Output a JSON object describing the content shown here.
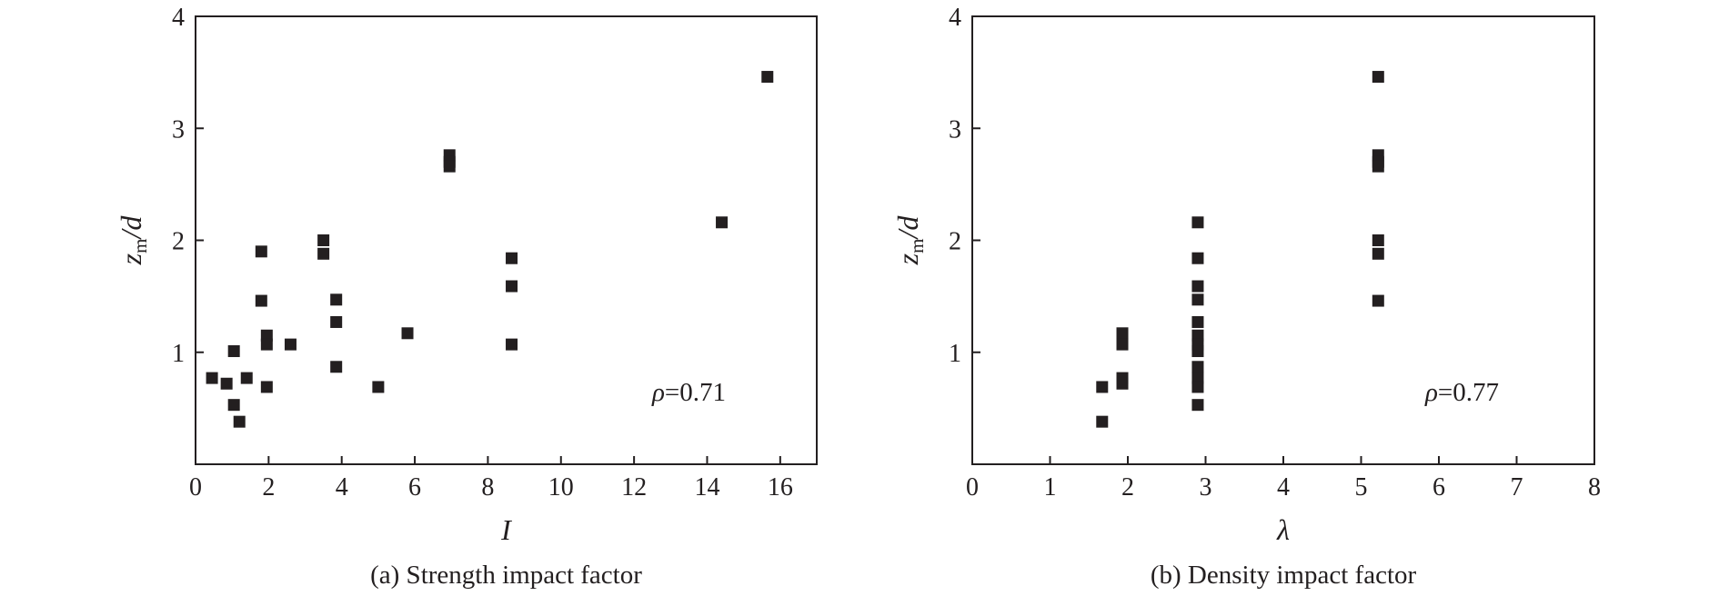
{
  "chart_data": [
    {
      "type": "scatter",
      "caption": "(a) Strength impact factor",
      "xlabel": "I",
      "ylabel_main": "z",
      "ylabel_sub": "m",
      "ylabel_tail": "/d",
      "annotation_symbol": "ρ",
      "annotation_value": "=0.71",
      "xlim": [
        0,
        17
      ],
      "ylim": [
        0,
        4
      ],
      "xticks": [
        0,
        2,
        4,
        6,
        8,
        10,
        12,
        14,
        16
      ],
      "yticks": [
        1,
        2,
        3,
        4
      ],
      "marker": "square",
      "color": "#231f20",
      "points": [
        {
          "x": 0.45,
          "y": 0.77
        },
        {
          "x": 0.85,
          "y": 0.72
        },
        {
          "x": 1.05,
          "y": 1.01
        },
        {
          "x": 1.05,
          "y": 0.53
        },
        {
          "x": 1.2,
          "y": 0.38
        },
        {
          "x": 1.4,
          "y": 0.77
        },
        {
          "x": 1.8,
          "y": 1.9
        },
        {
          "x": 1.8,
          "y": 1.46
        },
        {
          "x": 1.95,
          "y": 1.15
        },
        {
          "x": 1.95,
          "y": 1.07
        },
        {
          "x": 1.95,
          "y": 0.69
        },
        {
          "x": 2.6,
          "y": 1.07
        },
        {
          "x": 3.5,
          "y": 2.0
        },
        {
          "x": 3.5,
          "y": 1.88
        },
        {
          "x": 3.85,
          "y": 1.47
        },
        {
          "x": 3.85,
          "y": 1.27
        },
        {
          "x": 3.85,
          "y": 0.87
        },
        {
          "x": 5.0,
          "y": 0.69
        },
        {
          "x": 5.8,
          "y": 1.17
        },
        {
          "x": 6.95,
          "y": 2.76
        },
        {
          "x": 6.95,
          "y": 2.7
        },
        {
          "x": 6.95,
          "y": 2.66
        },
        {
          "x": 8.65,
          "y": 1.84
        },
        {
          "x": 8.65,
          "y": 1.59
        },
        {
          "x": 8.65,
          "y": 1.07
        },
        {
          "x": 14.4,
          "y": 2.16
        },
        {
          "x": 15.65,
          "y": 3.46
        }
      ]
    },
    {
      "type": "scatter",
      "caption": "(b) Density impact factor",
      "xlabel": "λ",
      "ylabel_main": "z",
      "ylabel_sub": "m",
      "ylabel_tail": "/d",
      "annotation_symbol": "ρ",
      "annotation_value": "=0.77",
      "xlim": [
        0,
        8
      ],
      "ylim": [
        0,
        4
      ],
      "xticks": [
        0,
        1,
        2,
        3,
        4,
        5,
        6,
        7,
        8
      ],
      "yticks": [
        1,
        2,
        3,
        4
      ],
      "marker": "square",
      "color": "#231f20",
      "points": [
        {
          "x": 1.67,
          "y": 0.69
        },
        {
          "x": 1.67,
          "y": 0.38
        },
        {
          "x": 1.93,
          "y": 1.17
        },
        {
          "x": 1.93,
          "y": 1.07
        },
        {
          "x": 1.93,
          "y": 0.77
        },
        {
          "x": 1.93,
          "y": 0.72
        },
        {
          "x": 2.9,
          "y": 2.16
        },
        {
          "x": 2.9,
          "y": 1.84
        },
        {
          "x": 2.9,
          "y": 1.59
        },
        {
          "x": 2.9,
          "y": 1.47
        },
        {
          "x": 2.9,
          "y": 1.27
        },
        {
          "x": 2.9,
          "y": 1.15
        },
        {
          "x": 2.9,
          "y": 1.07
        },
        {
          "x": 2.9,
          "y": 1.01
        },
        {
          "x": 2.9,
          "y": 0.87
        },
        {
          "x": 2.9,
          "y": 0.77
        },
        {
          "x": 2.9,
          "y": 0.69
        },
        {
          "x": 2.9,
          "y": 0.53
        },
        {
          "x": 5.22,
          "y": 3.46
        },
        {
          "x": 5.22,
          "y": 2.76
        },
        {
          "x": 5.22,
          "y": 2.7
        },
        {
          "x": 5.22,
          "y": 2.66
        },
        {
          "x": 5.22,
          "y": 2.0
        },
        {
          "x": 5.22,
          "y": 1.88
        },
        {
          "x": 5.22,
          "y": 1.46
        }
      ]
    }
  ]
}
